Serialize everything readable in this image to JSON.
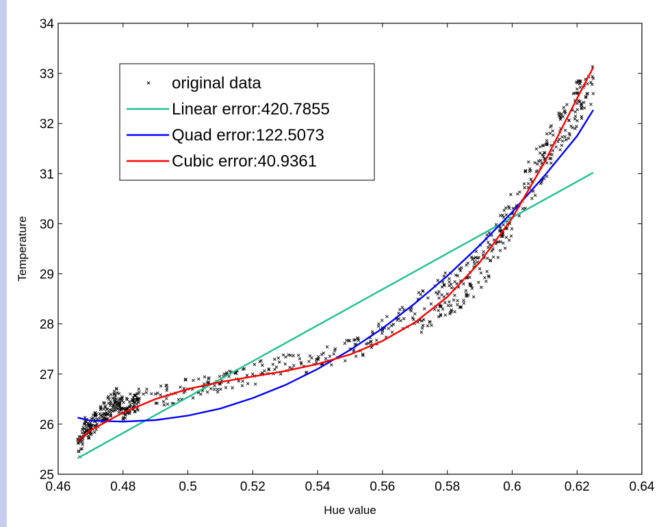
{
  "chart_data": {
    "type": "line",
    "title": "",
    "xlabel": "Hue value",
    "ylabel": "Temperature",
    "xlim": [
      0.46,
      0.64
    ],
    "ylim": [
      25,
      34
    ],
    "xticks": [
      "0.46",
      "0.48",
      "0.5",
      "0.52",
      "0.54",
      "0.56",
      "0.58",
      "0.6",
      "0.62",
      "0.64"
    ],
    "yticks": [
      "25",
      "26",
      "27",
      "28",
      "29",
      "30",
      "31",
      "32",
      "33",
      "34"
    ],
    "grid": false,
    "legend_position": "top-left",
    "series": [
      {
        "name": "original data",
        "kind": "scatter",
        "marker": "x",
        "color": "#000000",
        "x_range": [
          0.466,
          0.625
        ],
        "samples": [
          {
            "x": 0.466,
            "y": 25.7
          },
          {
            "x": 0.467,
            "y": 25.5
          },
          {
            "x": 0.468,
            "y": 26.0
          },
          {
            "x": 0.47,
            "y": 25.9
          },
          {
            "x": 0.472,
            "y": 26.1
          },
          {
            "x": 0.475,
            "y": 26.3
          },
          {
            "x": 0.478,
            "y": 26.5
          },
          {
            "x": 0.48,
            "y": 26.3
          },
          {
            "x": 0.485,
            "y": 26.5
          },
          {
            "x": 0.49,
            "y": 26.6
          },
          {
            "x": 0.495,
            "y": 26.6
          },
          {
            "x": 0.5,
            "y": 26.7
          },
          {
            "x": 0.505,
            "y": 26.8
          },
          {
            "x": 0.51,
            "y": 26.8
          },
          {
            "x": 0.515,
            "y": 26.9
          },
          {
            "x": 0.52,
            "y": 27.0
          },
          {
            "x": 0.525,
            "y": 27.1
          },
          {
            "x": 0.53,
            "y": 27.2
          },
          {
            "x": 0.535,
            "y": 27.2
          },
          {
            "x": 0.54,
            "y": 27.3
          },
          {
            "x": 0.545,
            "y": 27.4
          },
          {
            "x": 0.55,
            "y": 27.5
          },
          {
            "x": 0.555,
            "y": 27.6
          },
          {
            "x": 0.56,
            "y": 27.9
          },
          {
            "x": 0.565,
            "y": 28.1
          },
          {
            "x": 0.57,
            "y": 28.2
          },
          {
            "x": 0.575,
            "y": 28.4
          },
          {
            "x": 0.58,
            "y": 28.6
          },
          {
            "x": 0.585,
            "y": 28.8
          },
          {
            "x": 0.59,
            "y": 29.1
          },
          {
            "x": 0.595,
            "y": 29.6
          },
          {
            "x": 0.6,
            "y": 30.2
          },
          {
            "x": 0.605,
            "y": 30.8
          },
          {
            "x": 0.61,
            "y": 31.3
          },
          {
            "x": 0.615,
            "y": 31.9
          },
          {
            "x": 0.62,
            "y": 32.4
          },
          {
            "x": 0.625,
            "y": 32.9
          }
        ]
      },
      {
        "name": "Linear error:420.7855",
        "kind": "line",
        "color": "#1fbf8f",
        "points": [
          {
            "x": 0.466,
            "y": 25.32
          },
          {
            "x": 0.625,
            "y": 31.02
          }
        ]
      },
      {
        "name": "Quad error:122.5073",
        "kind": "line",
        "color": "#0000ff",
        "points": [
          {
            "x": 0.466,
            "y": 26.13
          },
          {
            "x": 0.47,
            "y": 26.07
          },
          {
            "x": 0.48,
            "y": 26.05
          },
          {
            "x": 0.49,
            "y": 26.08
          },
          {
            "x": 0.5,
            "y": 26.17
          },
          {
            "x": 0.51,
            "y": 26.31
          },
          {
            "x": 0.52,
            "y": 26.52
          },
          {
            "x": 0.53,
            "y": 26.78
          },
          {
            "x": 0.54,
            "y": 27.1
          },
          {
            "x": 0.55,
            "y": 27.48
          },
          {
            "x": 0.56,
            "y": 27.91
          },
          {
            "x": 0.57,
            "y": 28.41
          },
          {
            "x": 0.58,
            "y": 28.96
          },
          {
            "x": 0.59,
            "y": 29.57
          },
          {
            "x": 0.6,
            "y": 30.23
          },
          {
            "x": 0.61,
            "y": 30.96
          },
          {
            "x": 0.62,
            "y": 31.75
          },
          {
            "x": 0.625,
            "y": 32.27
          }
        ]
      },
      {
        "name": "Cubic error:40.9361",
        "kind": "line",
        "color": "#ff0000",
        "points": [
          {
            "x": 0.466,
            "y": 25.66
          },
          {
            "x": 0.47,
            "y": 25.88
          },
          {
            "x": 0.48,
            "y": 26.23
          },
          {
            "x": 0.49,
            "y": 26.5
          },
          {
            "x": 0.5,
            "y": 26.7
          },
          {
            "x": 0.51,
            "y": 26.84
          },
          {
            "x": 0.52,
            "y": 26.95
          },
          {
            "x": 0.53,
            "y": 27.06
          },
          {
            "x": 0.54,
            "y": 27.2
          },
          {
            "x": 0.55,
            "y": 27.39
          },
          {
            "x": 0.56,
            "y": 27.66
          },
          {
            "x": 0.57,
            "y": 28.03
          },
          {
            "x": 0.58,
            "y": 28.54
          },
          {
            "x": 0.59,
            "y": 29.23
          },
          {
            "x": 0.6,
            "y": 30.11
          },
          {
            "x": 0.61,
            "y": 31.23
          },
          {
            "x": 0.62,
            "y": 32.5
          },
          {
            "x": 0.625,
            "y": 33.12
          }
        ]
      }
    ]
  }
}
